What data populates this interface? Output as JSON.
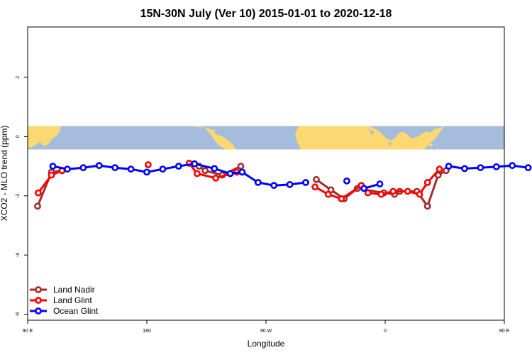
{
  "chart_data": {
    "type": "line",
    "title": "15N-30N July (Ver 10)   2015-01-01 to 2020-12-18",
    "xlabel": "Longitude",
    "ylabel": "XCO2 - MLO trend (ppm)",
    "xlim": [
      90,
      450
    ],
    "ylim": [
      -6.2,
      3.7
    ],
    "x_ticks": [
      {
        "value": 90,
        "label": "90 E"
      },
      {
        "value": 180,
        "label": "180"
      },
      {
        "value": 270,
        "label": "90 W"
      },
      {
        "value": 360,
        "label": "0"
      },
      {
        "value": 450,
        "label": "90 E"
      },
      {
        "value": 540,
        "label": "180"
      }
    ],
    "y_ticks": [
      {
        "value": -6,
        "label": "-6"
      },
      {
        "value": -4,
        "label": "-4"
      },
      {
        "value": -2,
        "label": "-2"
      },
      {
        "value": 0,
        "label": "0"
      },
      {
        "value": 2,
        "label": "2"
      }
    ],
    "grid": false,
    "legend_position": "bottom-left",
    "series": [
      {
        "name": "Land Nadir",
        "color": "#a52a2a",
        "segments": [
          [
            [
              97.5,
              -2.35
            ],
            [
              108,
              -1.2
            ],
            [
              116,
              -1.15
            ]
          ],
          [
            [
              219.5,
              -1.0
            ],
            [
              224,
              -1.15
            ],
            [
              237,
              -1.3
            ],
            [
              251,
              -1.0
            ]
          ],
          [
            [
              308,
              -1.45
            ],
            [
              319,
              -1.8
            ],
            [
              329,
              -2.1
            ],
            [
              339,
              -1.75
            ],
            [
              359,
              -1.9
            ],
            [
              367,
              -1.95
            ],
            [
              371,
              -1.85
            ],
            [
              384,
              -1.85
            ],
            [
              392,
              -2.35
            ],
            [
              400,
              -1.3
            ],
            [
              406,
              -1.15
            ]
          ]
        ]
      },
      {
        "name": "Land Glint",
        "color": "#ff0000",
        "segments": [
          [
            [
              98,
              -1.9
            ],
            [
              108,
              -1.3
            ],
            [
              116,
              -1.15
            ]
          ],
          [
            [
              181,
              -0.95
            ]
          ],
          [
            [
              212,
              -0.9
            ],
            [
              218,
              -1.25
            ],
            [
              232,
              -1.4
            ],
            [
              248,
              -1.2
            ]
          ],
          [
            [
              307,
              -1.7
            ],
            [
              317,
              -1.95
            ],
            [
              327,
              -2.1
            ],
            [
              342,
              -1.65
            ],
            [
              347,
              -1.9
            ],
            [
              357,
              -1.95
            ],
            [
              366,
              -1.85
            ],
            [
              377,
              -1.85
            ],
            [
              386,
              -1.95
            ],
            [
              392,
              -1.55
            ],
            [
              401,
              -1.1
            ]
          ]
        ]
      },
      {
        "name": "Ocean Glint",
        "color": "#0000ff",
        "segments": [
          [
            [
              109,
              -1.0
            ],
            [
              120,
              -1.1
            ],
            [
              132,
              -1.05
            ],
            [
              144,
              -0.98
            ],
            [
              156,
              -1.05
            ],
            [
              168,
              -1.1
            ],
            [
              180,
              -1.2
            ],
            [
              192,
              -1.1
            ],
            [
              204,
              -1.0
            ],
            [
              216,
              -0.92
            ],
            [
              231,
              -1.08
            ],
            [
              243,
              -1.25
            ],
            [
              252,
              -1.2
            ],
            [
              264,
              -1.55
            ],
            [
              276,
              -1.65
            ],
            [
              288,
              -1.62
            ],
            [
              300,
              -1.55
            ]
          ],
          [
            [
              331,
              -1.5
            ]
          ],
          [
            [
              344,
              -1.75
            ],
            [
              356,
              -1.6
            ]
          ],
          [
            [
              408,
              -1.0
            ],
            [
              420,
              -1.08
            ],
            [
              432,
              -1.05
            ],
            [
              444,
              -1.02
            ],
            [
              456,
              -0.98
            ],
            [
              468,
              -1.05
            ]
          ]
        ]
      }
    ]
  }
}
